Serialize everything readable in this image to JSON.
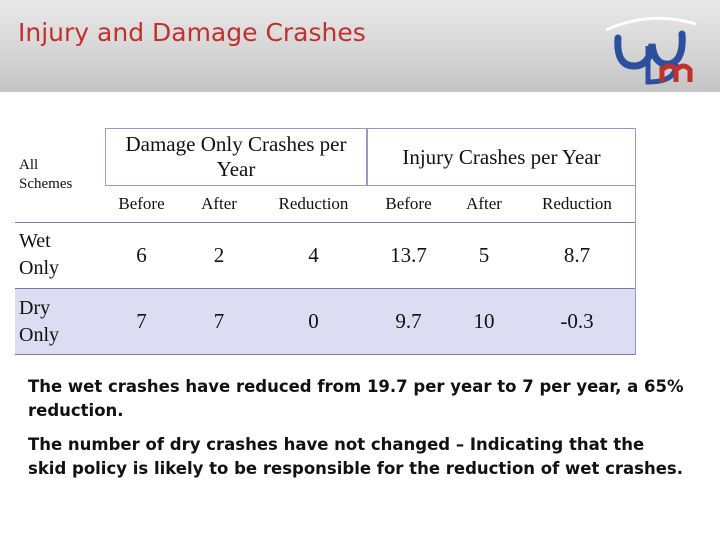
{
  "header": {
    "title": "Injury and Damage Crashes"
  },
  "table": {
    "corner": "All Schemes",
    "groups": [
      "Damage Only Crashes per Year",
      "Injury Crashes per Year"
    ],
    "subheaders": [
      "Before",
      "After",
      "Reduction",
      "Before",
      "After",
      "Reduction"
    ],
    "rows": [
      {
        "label": "Wet Only",
        "cells": [
          6,
          2,
          4,
          13.7,
          5,
          8.7
        ]
      },
      {
        "label": "Dry Only",
        "cells": [
          7,
          7,
          0,
          9.7,
          10,
          -0.3
        ]
      }
    ]
  },
  "notes": [
    "The wet crashes have reduced from 19.7 per year to 7 per year, a 65% reduction.",
    "The number of dry crashes have not changed – Indicating that the skid policy is likely to be responsible for the reduction of wet crashes."
  ]
}
